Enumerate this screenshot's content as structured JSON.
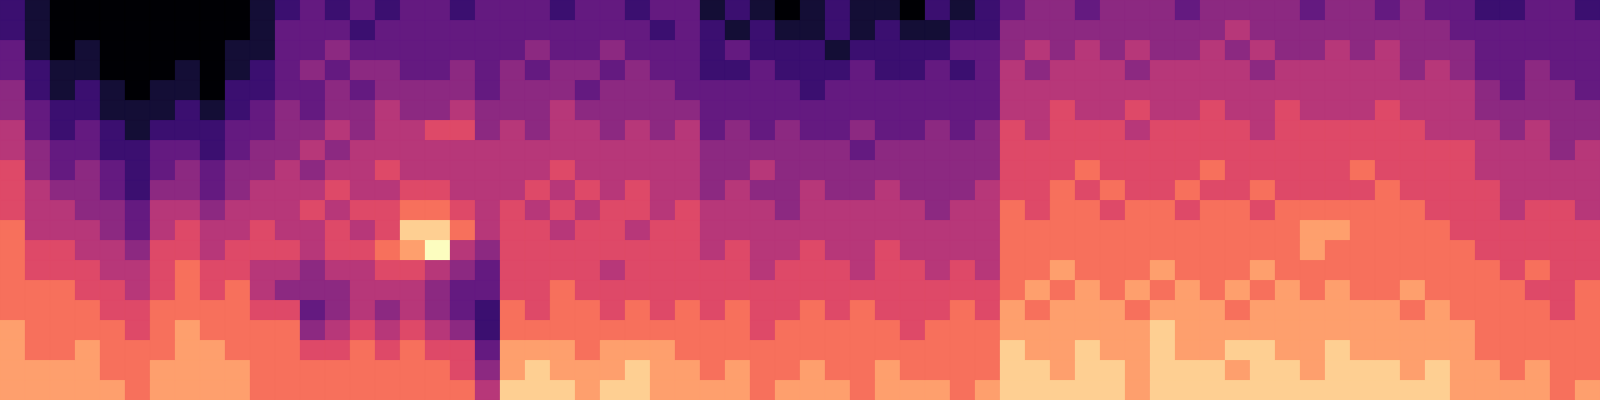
{
  "chart_data": {
    "type": "heatmap",
    "tick_labels": false,
    "cells": [
      [
        2,
        1,
        0,
        0,
        0,
        0,
        0,
        0,
        0,
        0,
        1,
        2,
        3,
        2,
        3,
        2,
        3,
        3,
        2,
        3,
        3,
        3,
        2,
        3,
        3,
        2,
        3,
        3,
        1,
        2,
        1,
        0,
        1,
        2,
        1,
        1,
        0,
        2,
        1,
        2,
        3,
        4,
        4,
        3,
        4,
        4,
        4,
        3,
        4,
        4,
        4,
        4,
        3,
        4,
        4,
        3,
        4,
        3,
        3,
        2,
        2,
        3,
        3,
        2
      ],
      [
        2,
        1,
        0,
        0,
        0,
        0,
        0,
        0,
        0,
        0,
        1,
        3,
        3,
        3,
        2,
        3,
        3,
        3,
        3,
        3,
        3,
        3,
        3,
        3,
        3,
        3,
        2,
        3,
        2,
        1,
        2,
        1,
        1,
        2,
        1,
        2,
        1,
        1,
        2,
        2,
        4,
        4,
        4,
        4,
        4,
        4,
        4,
        4,
        4,
        5,
        4,
        4,
        4,
        4,
        4,
        4,
        4,
        4,
        3,
        3,
        3,
        3,
        3,
        3
      ],
      [
        3,
        1,
        0,
        1,
        0,
        0,
        0,
        0,
        0,
        1,
        1,
        3,
        3,
        4,
        3,
        3,
        3,
        3,
        3,
        3,
        3,
        4,
        3,
        3,
        4,
        3,
        3,
        3,
        2,
        3,
        2,
        2,
        2,
        1,
        2,
        2,
        2,
        2,
        3,
        3,
        4,
        5,
        4,
        5,
        4,
        5,
        4,
        4,
        5,
        4,
        5,
        4,
        4,
        5,
        4,
        5,
        4,
        4,
        4,
        3,
        3,
        3,
        3,
        3
      ],
      [
        3,
        2,
        1,
        1,
        0,
        0,
        0,
        1,
        0,
        1,
        2,
        3,
        4,
        3,
        4,
        4,
        3,
        3,
        4,
        3,
        4,
        3,
        4,
        4,
        3,
        4,
        3,
        3,
        2,
        2,
        3,
        2,
        2,
        2,
        3,
        2,
        2,
        3,
        2,
        3,
        5,
        4,
        5,
        5,
        5,
        4,
        5,
        5,
        5,
        5,
        4,
        5,
        5,
        5,
        5,
        5,
        4,
        5,
        4,
        3,
        3,
        4,
        3,
        3
      ],
      [
        4,
        2,
        1,
        2,
        1,
        0,
        1,
        1,
        0,
        2,
        2,
        3,
        3,
        4,
        3,
        4,
        4,
        4,
        4,
        3,
        4,
        4,
        4,
        3,
        4,
        4,
        4,
        3,
        3,
        3,
        3,
        3,
        2,
        3,
        3,
        3,
        3,
        3,
        3,
        3,
        5,
        5,
        5,
        5,
        5,
        5,
        5,
        5,
        5,
        5,
        5,
        5,
        5,
        5,
        5,
        5,
        5,
        5,
        5,
        4,
        3,
        4,
        4,
        3
      ],
      [
        4,
        3,
        2,
        2,
        1,
        1,
        1,
        2,
        1,
        2,
        3,
        4,
        3,
        4,
        4,
        5,
        4,
        4,
        5,
        4,
        4,
        4,
        5,
        4,
        4,
        4,
        4,
        4,
        3,
        3,
        3,
        3,
        3,
        3,
        3,
        3,
        3,
        3,
        3,
        3,
        5,
        5,
        6,
        5,
        5,
        6,
        5,
        5,
        6,
        5,
        5,
        6,
        5,
        5,
        5,
        6,
        5,
        5,
        5,
        4,
        4,
        4,
        4,
        4
      ],
      [
        5,
        3,
        2,
        3,
        2,
        1,
        2,
        2,
        2,
        3,
        3,
        4,
        4,
        5,
        4,
        5,
        5,
        6,
        6,
        4,
        5,
        4,
        5,
        5,
        4,
        5,
        4,
        5,
        3,
        4,
        3,
        4,
        3,
        3,
        4,
        3,
        3,
        4,
        3,
        4,
        6,
        5,
        6,
        6,
        6,
        5,
        6,
        6,
        6,
        6,
        5,
        6,
        6,
        6,
        6,
        6,
        6,
        5,
        5,
        5,
        4,
        5,
        4,
        4
      ],
      [
        5,
        4,
        3,
        3,
        2,
        2,
        3,
        3,
        2,
        3,
        4,
        4,
        5,
        4,
        5,
        5,
        5,
        5,
        5,
        5,
        5,
        5,
        5,
        5,
        5,
        5,
        5,
        5,
        4,
        4,
        4,
        4,
        4,
        4,
        3,
        4,
        4,
        4,
        4,
        4,
        6,
        6,
        6,
        6,
        6,
        6,
        6,
        6,
        6,
        6,
        6,
        6,
        6,
        6,
        6,
        6,
        6,
        6,
        6,
        5,
        5,
        5,
        4,
        5
      ],
      [
        6,
        4,
        3,
        4,
        3,
        2,
        3,
        4,
        3,
        4,
        4,
        5,
        4,
        5,
        5,
        6,
        5,
        5,
        5,
        5,
        5,
        5,
        6,
        5,
        5,
        5,
        5,
        5,
        4,
        4,
        5,
        4,
        4,
        4,
        4,
        4,
        4,
        4,
        4,
        4,
        6,
        6,
        6,
        7,
        6,
        6,
        6,
        6,
        7,
        6,
        6,
        6,
        6,
        6,
        7,
        6,
        6,
        6,
        6,
        5,
        5,
        5,
        5,
        5
      ],
      [
        6,
        5,
        4,
        4,
        3,
        2,
        4,
        4,
        3,
        4,
        5,
        5,
        5,
        6,
        5,
        5,
        6,
        6,
        5,
        5,
        5,
        6,
        5,
        6,
        5,
        6,
        5,
        5,
        4,
        5,
        4,
        4,
        5,
        4,
        4,
        5,
        4,
        4,
        4,
        5,
        6,
        6,
        7,
        6,
        7,
        6,
        6,
        7,
        6,
        6,
        7,
        6,
        6,
        6,
        6,
        7,
        6,
        6,
        6,
        6,
        5,
        5,
        5,
        5
      ],
      [
        6,
        5,
        5,
        4,
        4,
        3,
        5,
        5,
        4,
        5,
        5,
        5,
        6,
        5,
        6,
        6,
        7,
        7,
        6,
        5,
        6,
        5,
        6,
        5,
        6,
        6,
        5,
        6,
        5,
        5,
        5,
        4,
        5,
        5,
        5,
        5,
        5,
        4,
        5,
        5,
        7,
        6,
        7,
        7,
        6,
        7,
        7,
        6,
        7,
        7,
        6,
        7,
        7,
        7,
        7,
        7,
        7,
        6,
        6,
        6,
        5,
        6,
        6,
        5
      ],
      [
        7,
        5,
        5,
        5,
        4,
        3,
        5,
        6,
        5,
        5,
        6,
        5,
        5,
        6,
        5,
        6,
        9,
        9,
        7,
        5,
        6,
        6,
        5,
        6,
        6,
        5,
        6,
        6,
        5,
        5,
        5,
        5,
        5,
        5,
        5,
        5,
        5,
        5,
        5,
        5,
        7,
        7,
        7,
        7,
        7,
        7,
        7,
        7,
        7,
        7,
        7,
        7,
        8,
        8,
        7,
        7,
        7,
        7,
        6,
        6,
        6,
        6,
        6,
        6
      ],
      [
        7,
        6,
        6,
        5,
        5,
        4,
        6,
        6,
        5,
        6,
        6,
        6,
        5,
        6,
        6,
        7,
        8,
        10,
        5,
        4,
        6,
        6,
        6,
        6,
        6,
        6,
        6,
        6,
        5,
        6,
        5,
        5,
        6,
        5,
        5,
        6,
        5,
        5,
        5,
        5,
        7,
        7,
        7,
        7,
        7,
        7,
        7,
        7,
        7,
        7,
        7,
        7,
        8,
        7,
        7,
        7,
        7,
        7,
        7,
        6,
        6,
        6,
        6,
        6
      ],
      [
        7,
        6,
        6,
        6,
        5,
        5,
        6,
        7,
        6,
        6,
        5,
        5,
        4,
        5,
        5,
        6,
        6,
        5,
        4,
        3,
        6,
        6,
        6,
        6,
        5,
        6,
        6,
        6,
        6,
        6,
        5,
        6,
        6,
        6,
        5,
        6,
        6,
        5,
        6,
        5,
        7,
        7,
        8,
        7,
        7,
        7,
        8,
        7,
        7,
        7,
        8,
        7,
        7,
        7,
        7,
        7,
        7,
        7,
        7,
        7,
        6,
        7,
        6,
        6
      ],
      [
        7,
        7,
        7,
        6,
        6,
        5,
        6,
        7,
        6,
        7,
        5,
        4,
        4,
        4,
        5,
        5,
        5,
        4,
        3,
        3,
        6,
        6,
        7,
        6,
        6,
        6,
        6,
        6,
        6,
        6,
        6,
        6,
        6,
        6,
        6,
        6,
        6,
        6,
        6,
        6,
        7,
        8,
        7,
        8,
        7,
        8,
        7,
        8,
        7,
        8,
        7,
        8,
        7,
        8,
        7,
        7,
        8,
        7,
        7,
        7,
        7,
        6,
        6,
        7
      ],
      [
        7,
        7,
        7,
        7,
        6,
        6,
        7,
        7,
        7,
        7,
        6,
        6,
        3,
        4,
        5,
        4,
        5,
        4,
        3,
        2,
        7,
        6,
        7,
        7,
        6,
        7,
        6,
        7,
        6,
        7,
        6,
        6,
        7,
        6,
        7,
        6,
        6,
        6,
        7,
        6,
        8,
        7,
        8,
        8,
        8,
        7,
        8,
        8,
        8,
        7,
        8,
        8,
        8,
        8,
        8,
        8,
        7,
        8,
        7,
        7,
        7,
        7,
        6,
        7
      ],
      [
        8,
        7,
        7,
        7,
        7,
        6,
        7,
        8,
        7,
        7,
        7,
        7,
        4,
        5,
        6,
        5,
        6,
        5,
        4,
        2,
        7,
        7,
        7,
        7,
        7,
        7,
        7,
        7,
        7,
        7,
        6,
        7,
        7,
        7,
        7,
        7,
        6,
        7,
        7,
        7,
        8,
        8,
        8,
        8,
        8,
        8,
        9,
        8,
        8,
        8,
        8,
        8,
        8,
        8,
        8,
        8,
        8,
        8,
        8,
        7,
        7,
        7,
        7,
        7
      ],
      [
        8,
        7,
        7,
        8,
        7,
        7,
        7,
        8,
        8,
        7,
        7,
        7,
        6,
        6,
        7,
        6,
        7,
        6,
        6,
        3,
        8,
        8,
        8,
        7,
        8,
        8,
        8,
        7,
        7,
        7,
        7,
        7,
        7,
        7,
        7,
        7,
        7,
        7,
        7,
        7,
        9,
        8,
        8,
        9,
        8,
        8,
        9,
        8,
        8,
        9,
        9,
        8,
        8,
        9,
        8,
        8,
        8,
        8,
        8,
        7,
        7,
        7,
        7,
        7
      ],
      [
        8,
        8,
        8,
        8,
        7,
        7,
        8,
        8,
        8,
        8,
        7,
        7,
        7,
        7,
        7,
        7,
        7,
        7,
        6,
        4,
        8,
        9,
        8,
        8,
        8,
        9,
        8,
        8,
        7,
        8,
        7,
        7,
        8,
        7,
        7,
        8,
        7,
        7,
        7,
        7,
        9,
        9,
        8,
        9,
        9,
        8,
        9,
        9,
        9,
        8,
        9,
        9,
        8,
        9,
        9,
        9,
        8,
        9,
        8,
        8,
        7,
        8,
        7,
        7
      ],
      [
        8,
        8,
        8,
        8,
        8,
        7,
        8,
        8,
        8,
        8,
        7,
        7,
        7,
        7,
        7,
        7,
        7,
        7,
        7,
        5,
        9,
        9,
        9,
        8,
        9,
        9,
        8,
        8,
        8,
        8,
        7,
        8,
        8,
        8,
        7,
        8,
        8,
        8,
        7,
        8,
        9,
        9,
        9,
        9,
        9,
        8,
        9,
        9,
        9,
        9,
        9,
        9,
        9,
        9,
        9,
        9,
        9,
        9,
        8,
        8,
        8,
        8,
        7,
        8
      ]
    ]
  }
}
